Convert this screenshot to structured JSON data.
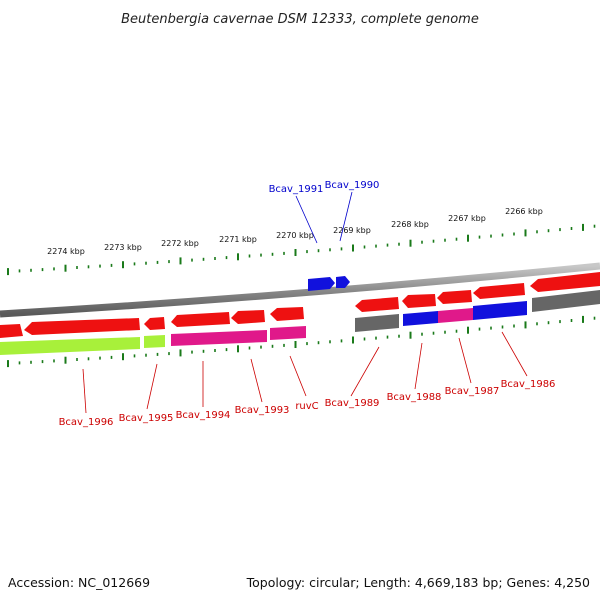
{
  "header": {
    "title": "Beutenbergia cavernae DSM 12333, complete genome"
  },
  "footer": {
    "accession": "Accession: NC_012669",
    "summary": "Topology: circular; Length: 4,669,183 bp; Genes: 4,250"
  },
  "ruler": {
    "labels": [
      "2274 kbp",
      "2273 kbp",
      "2272 kbp",
      "2271 kbp",
      "2270 kbp",
      "2269 kbp",
      "2268 kbp",
      "2267 kbp",
      "2266 kbp"
    ],
    "tick_color": "#1a7a1a"
  },
  "colors": {
    "red": "#ee1111",
    "blue": "#1111dd",
    "pink": "#e0198a",
    "lime": "#a8f03a",
    "gray": "#666666",
    "label_red": "#cc0000",
    "label_blue": "#0000cc"
  },
  "gene_labels": {
    "bcav_1991": "Bcav_1991",
    "bcav_1990": "Bcav_1990",
    "bcav_1996": "Bcav_1996",
    "bcav_1995": "Bcav_1995",
    "bcav_1994": "Bcav_1994",
    "bcav_1993": "Bcav_1993",
    "ruvc": "ruvC",
    "bcav_1989": "Bcav_1989",
    "bcav_1988": "Bcav_1988",
    "bcav_1987": "Bcav_1987",
    "bcav_1986": "Bcav_1986"
  }
}
